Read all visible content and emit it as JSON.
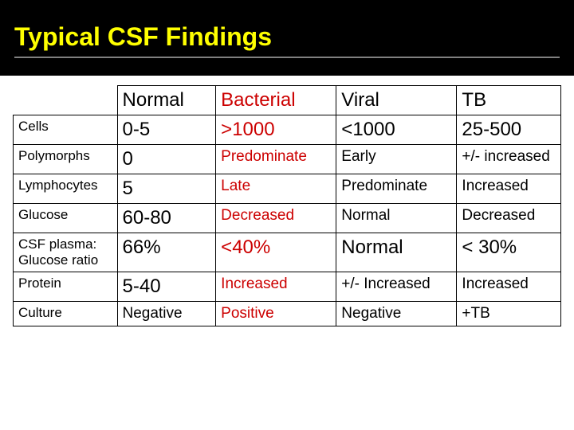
{
  "title": "Typical CSF Findings",
  "colors": {
    "title_bg": "#000000",
    "title_fg": "#ffff00",
    "title_underline": "#808080",
    "bacterial_fg": "#cc0000",
    "text_fg": "#000000",
    "cell_border": "#000000",
    "page_bg": "#ffffff"
  },
  "table": {
    "columns": [
      "",
      "Normal",
      "Bacterial",
      "Viral",
      "TB"
    ],
    "column_widths_pct": [
      19,
      18,
      22,
      22,
      19
    ],
    "header_fontsize": 24,
    "rows": [
      {
        "label": "Cells",
        "normal": "0-5",
        "bacterial": ">1000",
        "viral": "<1000",
        "tb": "25-500",
        "big": true
      },
      {
        "label": "Polymorphs",
        "normal": "0",
        "bacterial": "Predominate",
        "viral": "Early",
        "tb": "+/- increased",
        "big_normal": true
      },
      {
        "label": "Lymphocytes",
        "normal": "5",
        "bacterial": "Late",
        "viral": "Predominate",
        "tb": "Increased",
        "big_normal": true
      },
      {
        "label": "Glucose",
        "normal": "60-80",
        "bacterial": "Decreased",
        "viral": "Normal",
        "tb": "Decreased",
        "big_normal": true
      },
      {
        "label": "CSF plasma: Glucose ratio",
        "normal": "66%",
        "bacterial": "<40%",
        "viral": "Normal",
        "tb": "< 30%",
        "big": true
      },
      {
        "label": "Protein",
        "normal": "5-40",
        "bacterial": "Increased",
        "viral": "+/- Increased",
        "tb": "Increased",
        "big_normal": true
      },
      {
        "label": "Culture",
        "normal": "Negative",
        "bacterial": "Positive",
        "viral": "Negative",
        "tb": "+TB"
      }
    ]
  }
}
